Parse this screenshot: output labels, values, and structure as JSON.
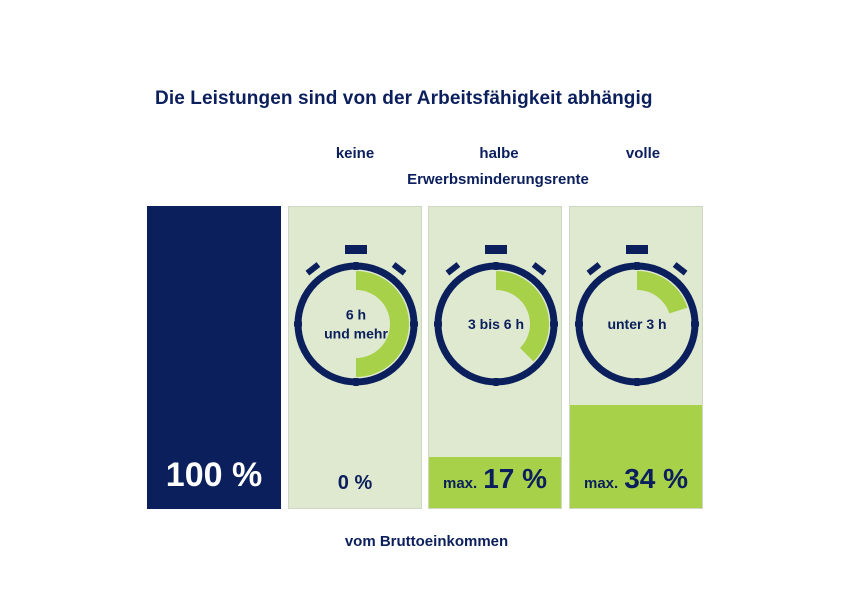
{
  "title": "Die Leistungen sind von der Arbeitsfähigkeit abhängig",
  "headers": {
    "keine": "keine",
    "halbe": "halbe",
    "volle": "volle",
    "sub": "Erwerbsminderungsrente"
  },
  "footer": "vom Bruttoeinkommen",
  "colors": {
    "navy": "#0b1f5c",
    "green": "#a8d14a",
    "light_green": "#dfe9cf"
  },
  "chart_data": {
    "type": "bar",
    "categories": [
      "Bruttoeinkommen",
      "keine",
      "halbe",
      "volle"
    ],
    "values": [
      100,
      0,
      17,
      34
    ],
    "unit": "%",
    "value_labels": [
      {
        "prefix": "",
        "text": "100 %"
      },
      {
        "prefix": "",
        "text": "0 %"
      },
      {
        "prefix": "max.",
        "text": "17 %"
      },
      {
        "prefix": "max.",
        "text": "34 %"
      }
    ],
    "clocks": [
      {
        "label_lines": [
          "6 h",
          "und mehr"
        ],
        "arc_from_hours": 0,
        "arc_to_hours": 6
      },
      {
        "label_lines": [
          "3 bis 6 h"
        ],
        "arc_from_hours": 0,
        "arc_to_hours": 4.5
      },
      {
        "label_lines": [
          "unter 3 h"
        ],
        "arc_from_hours": 0,
        "arc_to_hours": 2.4
      }
    ],
    "ylim": [
      0,
      100
    ]
  }
}
